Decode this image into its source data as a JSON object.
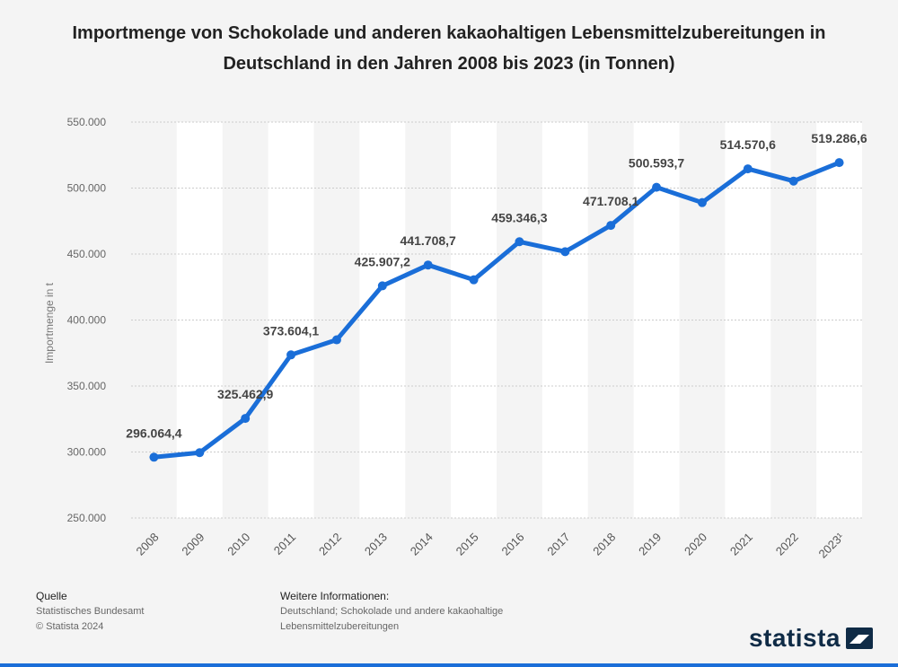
{
  "title": "Importmenge von Schokolade und anderen kakaohaltigen Lebensmittelzubereitungen in Deutschland in den Jahren 2008 bis 2023 (in Tonnen)",
  "footer": {
    "source_head": "Quelle",
    "source_lines": [
      "Statistisches Bundesamt",
      "© Statista 2024"
    ],
    "info_head": "Weitere Informationen:",
    "info_lines": [
      "Deutschland; Schokolade und andere kakaohaltige",
      "Lebensmittelzubereitungen"
    ]
  },
  "logo_text": "statista",
  "colors": {
    "line": "#1a6ed8",
    "band": "#ffffff",
    "background": "#f4f4f4",
    "grid": "#cccccc"
  },
  "chart_data": {
    "type": "line",
    "ylabel": "Importmenge in t",
    "ylim": [
      250000,
      550000
    ],
    "yticks": [
      550000,
      500000,
      450000,
      400000,
      350000,
      300000,
      250000
    ],
    "ytick_labels": [
      "550.000",
      "500.000",
      "450.000",
      "400.000",
      "350.000",
      "300.000",
      "250.000"
    ],
    "categories": [
      "2008",
      "2009",
      "2010",
      "2011",
      "2012",
      "2013",
      "2014",
      "2015",
      "2016",
      "2017",
      "2018",
      "2019",
      "2020",
      "2021",
      "2022",
      "2023¹"
    ],
    "series": [
      {
        "values": [
          296064.4,
          299500,
          325462.9,
          373604.1,
          385000,
          425907.2,
          441708.7,
          430500,
          459346.3,
          451800,
          471708.1,
          500593.7,
          489000,
          514570.6,
          505300,
          519286.6
        ],
        "labels": [
          "296.064,4",
          "",
          "325.462,9",
          "373.604,1",
          "",
          "425.907,2",
          "441.708,7",
          "",
          "459.346,3",
          "",
          "471.708,1",
          "500.593,7",
          "",
          "514.570,6",
          "",
          "519.286,6"
        ]
      }
    ],
    "grid": true,
    "legend": "none"
  }
}
